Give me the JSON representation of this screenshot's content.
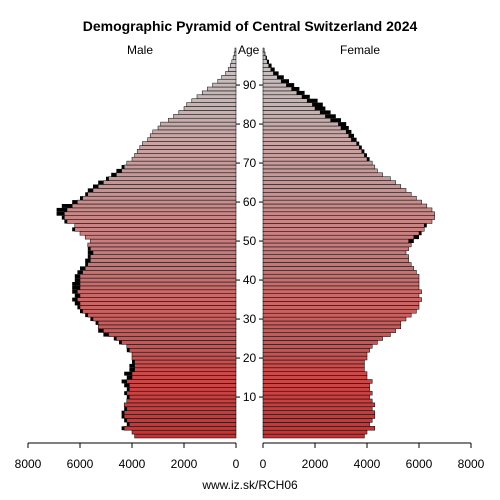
{
  "chart_data": {
    "type": "bar",
    "title": "Demographic Pyramid of Central Switzerland 2024",
    "left_label": "Male",
    "center_label": "Age",
    "right_label": "Female",
    "footer": "www.iz.sk/RCH06",
    "x_max": 8000,
    "x_ticks": [
      0,
      2000,
      4000,
      6000,
      8000
    ],
    "x_tick_labels": [
      "0",
      "2000",
      "4000",
      "6000",
      "8000"
    ],
    "age_ticks": [
      10,
      20,
      30,
      40,
      50,
      60,
      70,
      80,
      90
    ],
    "ages_from": 0,
    "ages_to": 100,
    "colors": {
      "young": "#c83232",
      "old": "#c8c8c8",
      "excess": "#000000"
    },
    "male_values": [
      3900,
      4000,
      4400,
      4200,
      4300,
      4400,
      4400,
      4300,
      4300,
      4200,
      4200,
      4300,
      4200,
      4300,
      4400,
      4200,
      4300,
      4100,
      4100,
      4000,
      4000,
      4000,
      4200,
      4200,
      4500,
      4700,
      5100,
      5300,
      5300,
      5400,
      5600,
      5800,
      6000,
      6100,
      6200,
      6300,
      6200,
      6300,
      6300,
      6300,
      6200,
      6200,
      6100,
      6000,
      5800,
      5800,
      5700,
      5700,
      5700,
      5700,
      5600,
      5800,
      6000,
      6300,
      6200,
      6600,
      6700,
      6900,
      6900,
      6700,
      6300,
      6000,
      5800,
      5700,
      5500,
      5300,
      5000,
      4800,
      4600,
      4400,
      4200,
      4000,
      3900,
      3800,
      3700,
      3600,
      3400,
      3300,
      3200,
      3000,
      2900,
      2600,
      2400,
      2200,
      2000,
      1900,
      1700,
      1500,
      1300,
      1100,
      900,
      700,
      550,
      400,
      300,
      220,
      160,
      110,
      70,
      40
    ],
    "female_values": [
      3900,
      4000,
      4300,
      4100,
      4200,
      4300,
      4300,
      4200,
      4300,
      4200,
      4100,
      4200,
      4100,
      4100,
      4200,
      4000,
      4000,
      3900,
      3900,
      3900,
      4000,
      4000,
      4100,
      4200,
      4400,
      4600,
      4900,
      5100,
      5300,
      5300,
      5500,
      5700,
      5900,
      6000,
      6000,
      6100,
      6000,
      6100,
      6000,
      6000,
      6000,
      6000,
      5900,
      5800,
      5700,
      5600,
      5600,
      5500,
      5600,
      5700,
      5800,
      6000,
      6100,
      6200,
      6300,
      6500,
      6600,
      6600,
      6500,
      6300,
      6100,
      5900,
      5700,
      5500,
      5300,
      5100,
      4900,
      4600,
      4400,
      4300,
      4200,
      4100,
      4000,
      3900,
      3800,
      3700,
      3600,
      3500,
      3400,
      3300,
      3200,
      3000,
      2800,
      2600,
      2400,
      2300,
      2100,
      1800,
      1600,
      1400,
      1200,
      1000,
      800,
      600,
      450,
      330,
      230,
      150,
      90,
      50
    ]
  }
}
